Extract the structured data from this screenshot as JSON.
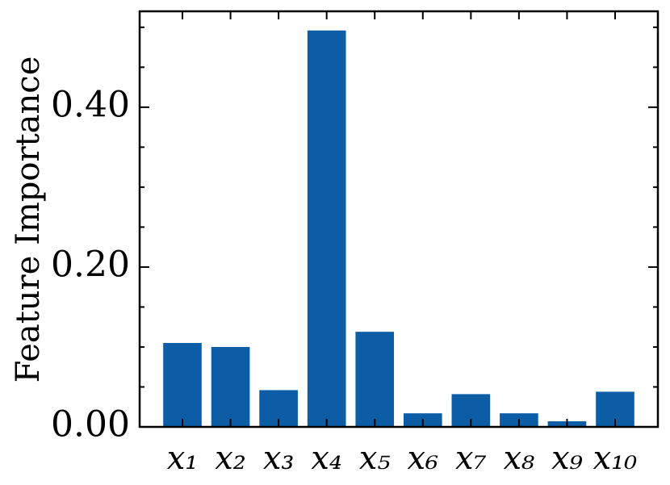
{
  "chart_data": {
    "type": "bar",
    "ylabel": "Feature Importance",
    "categories": [
      "x₁",
      "x₂",
      "x₃",
      "x₄",
      "x₅",
      "x₆",
      "x₇",
      "x₈",
      "x₉",
      "x₁₀"
    ],
    "values": [
      0.105,
      0.1,
      0.046,
      0.496,
      0.119,
      0.017,
      0.041,
      0.017,
      0.007,
      0.044
    ],
    "color": "#0c5da5",
    "ylim": [
      0,
      0.52
    ],
    "yticks": [
      {
        "value": 0,
        "label": "0.00"
      },
      {
        "value": 0.2,
        "label": "0.20"
      },
      {
        "value": 0.4,
        "label": "0.40"
      }
    ],
    "yminorticks": [
      0.05,
      0.1,
      0.15,
      0.25,
      0.3,
      0.35,
      0.45,
      0.5
    ]
  }
}
